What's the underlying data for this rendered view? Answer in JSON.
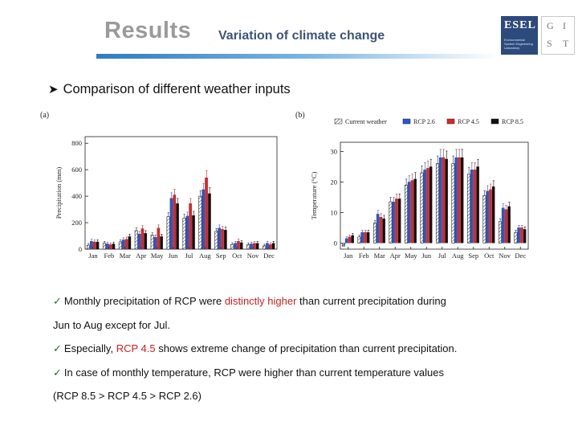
{
  "header": {
    "title": "Results",
    "subtitle": "Variation of climate change",
    "logo": {
      "text": "ESEL",
      "small": "Environmental System Engineering Laboratory",
      "gis": [
        "G",
        "I",
        "S",
        "T"
      ]
    }
  },
  "section_heading": "Comparison of different weather inputs",
  "colors": {
    "current": "#ffffff",
    "rcp26": "#2756d6",
    "rcp45": "#e02424",
    "rcp85": "#111111"
  },
  "chart_data": [
    {
      "panel": "(a)",
      "type": "bar",
      "ylabel": "Precipitation (mm)",
      "ylim": [
        0,
        850
      ],
      "yticks": [
        "0",
        "200",
        "400",
        "600",
        "800"
      ],
      "yticks_values": [
        0,
        200,
        400,
        600,
        800
      ],
      "categories": [
        "Jan",
        "Feb",
        "Mar",
        "Apr",
        "May",
        "Jun",
        "Jul",
        "Aug",
        "Sep",
        "Oct",
        "Nov",
        "Dec"
      ],
      "series": [
        {
          "name": "Current weather",
          "values": [
            30,
            45,
            55,
            140,
            105,
            245,
            235,
            400,
            135,
            35,
            35,
            25
          ]
        },
        {
          "name": "RCP 2.6",
          "values": [
            60,
            40,
            70,
            115,
            90,
            385,
            250,
            450,
            160,
            45,
            40,
            45
          ]
        },
        {
          "name": "RCP 4.5",
          "values": [
            55,
            35,
            75,
            155,
            160,
            410,
            345,
            540,
            150,
            60,
            45,
            35
          ]
        },
        {
          "name": "RCP 8.5",
          "values": [
            55,
            40,
            95,
            120,
            95,
            345,
            255,
            420,
            145,
            50,
            45,
            45
          ]
        }
      ]
    },
    {
      "panel": "(b)",
      "type": "bar",
      "ylabel": "Temperature (°C)",
      "ylim": [
        -2,
        33
      ],
      "yticks": [
        "0",
        "10",
        "20",
        "30"
      ],
      "yticks_values": [
        0,
        10,
        20,
        30
      ],
      "categories": [
        "Jan",
        "Feb",
        "Mar",
        "Apr",
        "May",
        "Jun",
        "Jul",
        "Aug",
        "Sep",
        "Oct",
        "Nov",
        "Dec"
      ],
      "legend": [
        "Current weather",
        "RCP 2.6",
        "RCP 4.5",
        "RCP 8.5"
      ],
      "series": [
        {
          "name": "Current weather",
          "values": [
            -1,
            2,
            6.5,
            13.5,
            19,
            23,
            26,
            26,
            22.5,
            15.5,
            7,
            3.5
          ]
        },
        {
          "name": "RCP 2.6",
          "values": [
            1.5,
            3.5,
            9.5,
            13.5,
            20,
            24,
            28,
            28,
            24,
            17,
            11.5,
            5
          ]
        },
        {
          "name": "RCP 4.5",
          "values": [
            2,
            3.5,
            8.5,
            14.5,
            20.5,
            24.5,
            28,
            28,
            24,
            17.5,
            11,
            5
          ]
        },
        {
          "name": "RCP 8.5",
          "values": [
            2.5,
            3.5,
            8,
            14.5,
            21,
            25,
            27.5,
            28,
            25,
            18.5,
            12,
            4.5
          ]
        }
      ]
    }
  ],
  "bullets": {
    "b1_pre": "Monthly precipitation of RCP were ",
    "b1_red": "distinctly higher",
    "b1_post": " than current precipitation during",
    "b1_line2": "Jun to Aug except for Jul.",
    "b2_pre": "Especially, ",
    "b2_red": "RCP 4.5",
    "b2_post": " shows extreme change of precipitation than current precipitation.",
    "b3": "In case of monthly temperature, RCP were higher than current temperature values",
    "b3_line2": "(RCP 8.5 > RCP 4.5 > RCP 2.6)"
  }
}
